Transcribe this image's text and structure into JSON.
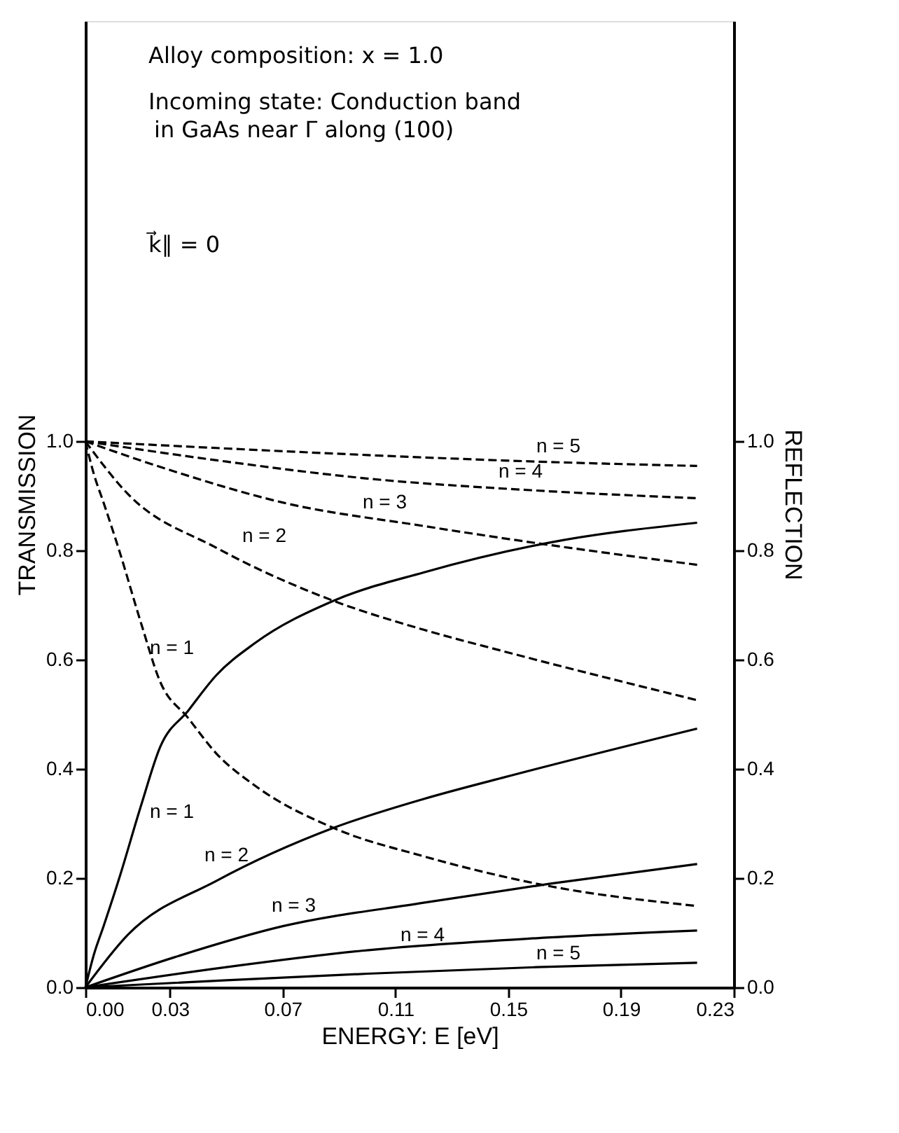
{
  "chart_data": {
    "type": "line",
    "xlabel": "ENERGY: E [eV]",
    "ylabel": "TRANSMISSION",
    "y2label": "REFLECTION",
    "xlim": [
      0,
      0.23
    ],
    "xticks": [
      {
        "value": 0,
        "label": "0.00"
      },
      0.03,
      0.07,
      0.11,
      0.15,
      0.19,
      0.23
    ],
    "ylim": [
      0,
      1.77
    ],
    "yticks": [
      {
        "value": 0,
        "label": "0.0"
      },
      0.2,
      0.4,
      0.6,
      0.8,
      {
        "value": 1,
        "label": "1.0"
      }
    ],
    "y2lim": [
      0,
      1.77
    ],
    "y2ticks": [
      {
        "value": 0,
        "label": "0.0"
      },
      0.2,
      0.4,
      0.6,
      0.8,
      {
        "value": 1,
        "label": "1.0"
      }
    ],
    "grid": false,
    "marker": "none",
    "legend": false,
    "series": [
      {
        "color": "#000000",
        "line_style": "solid",
        "x": [
          0,
          0.003,
          0.0065,
          0.012,
          0.0198,
          0.0265,
          0.0365,
          0.0465,
          0.06,
          0.088,
          0.12,
          0.165,
          0.217
        ],
        "values": [
          0,
          0.06,
          0.113,
          0.2,
          0.334,
          0.44,
          0.507,
          0.572,
          0.63,
          0.708,
          0.76,
          0.815,
          0.851
        ]
      },
      {
        "color": "#000000",
        "line_style": "solid",
        "x": [
          0,
          0.015,
          0.0465,
          0.088,
          0.12,
          0.148,
          0.217
        ],
        "values": [
          0,
          0.096,
          0.195,
          0.292,
          0.345,
          0.384,
          0.474
        ]
      },
      {
        "color": "#000000",
        "line_style": "solid",
        "x": [
          0,
          0.0315,
          0.07,
          0.12,
          0.165,
          0.217
        ],
        "values": [
          0,
          0.055,
          0.112,
          0.155,
          0.19,
          0.226
        ]
      },
      {
        "color": "#000000",
        "line_style": "solid",
        "x": [
          0,
          0.05,
          0.098,
          0.16,
          0.217
        ],
        "values": [
          0,
          0.037,
          0.067,
          0.09,
          0.104
        ]
      },
      {
        "color": "#000000",
        "line_style": "solid",
        "x": [
          0,
          0.05,
          0.1,
          0.16,
          0.217
        ],
        "values": [
          0,
          0.013,
          0.025,
          0.037,
          0.045
        ]
      },
      {
        "color": "#000000",
        "line_style": "dashed",
        "axis": "y2",
        "x": [
          0,
          0.003,
          0.0065,
          0.012,
          0.0198,
          0.0265,
          0.0365,
          0.0465,
          0.06,
          0.088,
          0.12,
          0.165,
          0.217
        ],
        "values": [
          1,
          0.94,
          0.887,
          0.8,
          0.666,
          0.56,
          0.493,
          0.428,
          0.37,
          0.292,
          0.24,
          0.185,
          0.149
        ]
      },
      {
        "color": "#000000",
        "line_style": "dashed",
        "axis": "y2",
        "x": [
          0,
          0.015,
          0.0465,
          0.088,
          0.12,
          0.148,
          0.217
        ],
        "values": [
          1,
          0.904,
          0.805,
          0.708,
          0.655,
          0.616,
          0.526
        ]
      },
      {
        "color": "#000000",
        "line_style": "dashed",
        "axis": "y2",
        "x": [
          0,
          0.0315,
          0.07,
          0.12,
          0.165,
          0.217
        ],
        "values": [
          1,
          0.945,
          0.888,
          0.845,
          0.81,
          0.774
        ]
      },
      {
        "color": "#000000",
        "line_style": "dashed",
        "axis": "y2",
        "x": [
          0,
          0.05,
          0.098,
          0.16,
          0.217
        ],
        "values": [
          1,
          0.963,
          0.933,
          0.91,
          0.896
        ]
      },
      {
        "color": "#000000",
        "line_style": "dashed",
        "axis": "y2",
        "x": [
          0,
          0.05,
          0.1,
          0.16,
          0.217
        ],
        "values": [
          1,
          0.987,
          0.975,
          0.963,
          0.955
        ]
      }
    ],
    "annotations": [
      "Alloy composition: x = 1.0",
      "Incoming state: Conduction band",
      "in GaAs near Γ along (100)",
      "k⃗∥ = 0",
      "n = 1",
      "n = 2",
      "n = 3",
      "n = 4",
      "n = 5",
      "n = 1",
      "n = 2",
      "n = 3",
      "n = 4",
      "n = 5"
    ]
  }
}
